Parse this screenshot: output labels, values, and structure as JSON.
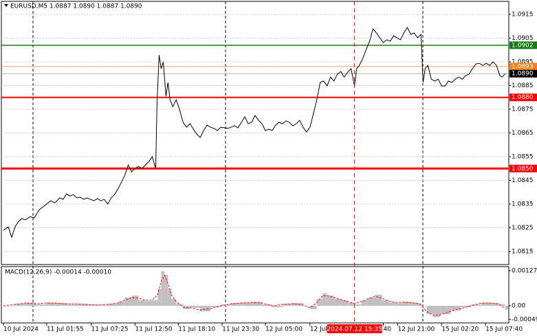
{
  "chart_data": [
    {
      "type": "line",
      "title": "EURUSD,M5 1.0887 1.0890 1.0887 1.0890",
      "color": "#000000",
      "grid": true,
      "xlim": [
        0,
        740
      ],
      "ylim": [
        1.08095,
        1.09205
      ],
      "yticks": [
        1.0815,
        1.0825,
        1.0835,
        1.0845,
        1.0855,
        1.0865,
        1.0875,
        1.0885,
        1.0895,
        1.0905,
        1.0915
      ],
      "x": [
        3,
        10,
        15,
        20,
        25,
        30,
        35,
        42,
        48,
        55,
        62,
        68,
        72,
        78,
        85,
        90,
        95,
        100,
        105,
        110,
        115,
        120,
        125,
        130,
        135,
        140,
        145,
        150,
        155,
        160,
        165,
        170,
        175,
        180,
        185,
        190,
        195,
        200,
        205,
        210,
        215,
        220,
        225,
        227,
        230,
        233,
        236,
        240,
        243,
        246,
        250,
        255,
        260,
        265,
        270,
        275,
        280,
        285,
        290,
        295,
        300,
        305,
        310,
        315,
        320,
        325,
        330,
        335,
        340,
        345,
        350,
        355,
        360,
        365,
        370,
        375,
        380,
        385,
        390,
        395,
        400,
        405,
        410,
        415,
        420,
        425,
        430,
        435,
        440,
        445,
        450,
        455,
        460,
        465,
        470,
        475,
        480,
        485,
        490,
        495,
        500,
        505,
        510,
        515,
        518,
        522,
        527,
        532,
        537,
        542,
        547,
        552,
        557,
        562,
        567,
        572,
        577,
        582,
        587,
        592,
        597,
        602,
        607,
        612,
        615,
        618,
        622,
        627,
        632,
        637,
        642,
        647,
        652,
        657,
        662,
        667,
        672,
        677,
        682,
        687,
        692,
        697,
        702,
        707,
        712,
        717,
        722,
        727,
        730,
        735
      ],
      "values": [
        1.08239,
        1.08254,
        1.0821,
        1.08254,
        1.08277,
        1.08289,
        1.08283,
        1.08297,
        1.08292,
        1.08326,
        1.08341,
        1.08355,
        1.08364,
        1.08355,
        1.08376,
        1.0837,
        1.08393,
        1.08384,
        1.0839,
        1.08376,
        1.08379,
        1.0837,
        1.08376,
        1.0837,
        1.08364,
        1.08373,
        1.08364,
        1.0837,
        1.0835,
        1.08376,
        1.0839,
        1.08413,
        1.08442,
        1.08471,
        1.08515,
        1.08486,
        1.085,
        1.08509,
        1.085,
        1.08515,
        1.08529,
        1.0855,
        1.085,
        1.08776,
        1.08979,
        1.08921,
        1.0895,
        1.08805,
        1.08863,
        1.0879,
        1.08761,
        1.0879,
        1.08747,
        1.08695,
        1.08674,
        1.08689,
        1.08666,
        1.08645,
        1.08631,
        1.0866,
        1.08683,
        1.08674,
        1.08669,
        1.0866,
        1.08674,
        1.08672,
        1.08669,
        1.08674,
        1.0868,
        1.08672,
        1.08695,
        1.08718,
        1.08689,
        1.08695,
        1.08724,
        1.08703,
        1.08689,
        1.0866,
        1.08666,
        1.0866,
        1.08683,
        1.08695,
        1.08689,
        1.08701,
        1.08695,
        1.0868,
        1.08689,
        1.08703,
        1.08674,
        1.08654,
        1.08674,
        1.08732,
        1.0879,
        1.08863,
        1.08869,
        1.08848,
        1.08886,
        1.08869,
        1.08898,
        1.08909,
        1.08886,
        1.08906,
        1.08921,
        1.08848,
        1.08921,
        1.08935,
        1.08964,
        1.09002,
        1.09037,
        1.09089,
        1.09072,
        1.09051,
        1.09031,
        1.09043,
        1.09037,
        1.0906,
        1.09051,
        1.09043,
        1.09072,
        1.09095,
        1.09066,
        1.09072,
        1.09051,
        1.09066,
        1.08863,
        1.08921,
        1.08935,
        1.08877,
        1.08869,
        1.08877,
        1.08848,
        1.08848,
        1.08869,
        1.08863,
        1.08877,
        1.08886,
        1.08877,
        1.08892,
        1.08898,
        1.08921,
        1.08941,
        1.08944,
        1.08935,
        1.08944,
        1.08935,
        1.0895,
        1.08935,
        1.08892,
        1.08886,
        1.089
      ],
      "levels": [
        {
          "value": 1.0902,
          "color": "#1a7a1a",
          "label_bg": "#1a7a1a",
          "width": 1.5
        },
        {
          "value": 1.0893,
          "color": "#f0a060",
          "label_bg": "#f08020",
          "width": 1
        },
        {
          "value": 1.089,
          "label": "1.0890",
          "color": "#b0b0b0",
          "label_bg": "#000000",
          "width": 1
        },
        {
          "value": 1.088,
          "label": "1.0880",
          "color": "#ff0000",
          "label_bg": "#ff0000",
          "width": 2
        },
        {
          "value": 1.085,
          "label": "1.0850",
          "color": "#ff0000",
          "label_bg": "#ff0000",
          "width": 3
        }
      ]
    },
    {
      "type": "bar",
      "title": "MACD(12,26,9) -0.00014 -0.00010",
      "xlim": [
        0,
        740
      ],
      "ylim": [
        -0.00062,
        0.00142
      ],
      "yticks": [
        0.00127,
        {
          "value": 0,
          "label": "0.00"
        },
        -0.00049
      ],
      "x": [
        3,
        20,
        35,
        50,
        65,
        80,
        95,
        110,
        125,
        140,
        155,
        170,
        180,
        190,
        200,
        210,
        220,
        228,
        233,
        238,
        243,
        248,
        255,
        265,
        275,
        290,
        305,
        320,
        335,
        350,
        365,
        380,
        395,
        410,
        425,
        440,
        450,
        460,
        468,
        475,
        485,
        495,
        505,
        515,
        525,
        535,
        545,
        555,
        565,
        575,
        585,
        595,
        605,
        612,
        620,
        630,
        640,
        655,
        670,
        685,
        700,
        715,
        725,
        735
      ],
      "series": [
        {
          "color": "#c0c0c0",
          "values": [
            0,
            7e-05,
            0.00012,
            5e-05,
            0.00012,
            0.0001,
            5e-05,
            7e-05,
            5e-05,
            2e-05,
            7e-05,
            0.00015,
            0.0003,
            0.00037,
            0.0002,
            0.00017,
            0.0002,
            0.00062,
            0.00125,
            0.00112,
            0.00062,
            0.00025,
            7e-05,
            -0.00012,
            -7e-05,
            -0.0002,
            -5e-05,
            5e-05,
            0.0001,
            0.00012,
            0.00015,
            5e-05,
            -5e-05,
            7e-05,
            0.0001,
            0,
            -0.00012,
            0.00025,
            0.00045,
            0.00037,
            0.00025,
            0.0002,
            0.00012,
            5e-05,
            0.0002,
            0.0003,
            0.0004,
            0.0002,
            0.00012,
            0.0001,
            0.00015,
            0.00012,
            0.0001,
            0,
            -0.0003,
            -0.0004,
            -0.0003,
            -0.00017,
            -5e-05,
            5e-05,
            0.00012,
            0.0001,
            5e-05,
            -0.00014
          ]
        },
        {
          "color": "#ff0000",
          "style": "dashed",
          "values": [
            0,
            5e-05,
            0.0001,
            7e-05,
            0.0001,
            0.0001,
            7e-05,
            7e-05,
            5e-05,
            3e-05,
            5e-05,
            0.0001,
            0.0002,
            0.0003,
            0.00027,
            0.0002,
            0.0002,
            0.0004,
            0.0009,
            0.0011,
            0.0008,
            0.0004,
            0.00015,
            -5e-05,
            -7e-05,
            -0.00015,
            -0.0001,
            0,
            7e-05,
            0.0001,
            0.00012,
            0.0001,
            0,
            5e-05,
            8e-05,
            3e-05,
            -8e-05,
            0.00012,
            0.00035,
            0.00037,
            0.0003,
            0.00022,
            0.00015,
            8e-05,
            0.00015,
            0.00025,
            0.00035,
            0.00027,
            0.00017,
            0.00012,
            0.00013,
            0.00012,
            0.0001,
            3e-05,
            -0.0002,
            -0.00035,
            -0.00033,
            -0.0002,
            -0.0001,
            0,
            0.0001,
            0.0001,
            7e-05,
            -0.0001
          ]
        }
      ],
      "xticks": [
        {
          "value": 3,
          "label": "10 Jul 2024"
        },
        {
          "value": 66,
          "label": "11 Jul 01:55"
        },
        {
          "value": 131,
          "label": "11 Jul 07:25"
        },
        {
          "value": 195,
          "label": "11 Jul 12:50"
        },
        {
          "value": 258,
          "label": "11 Jul 18:10"
        },
        {
          "value": 322,
          "label": "11 Jul 23:30"
        },
        {
          "value": 385,
          "label": "12 Jul 05:00"
        },
        {
          "value": 450,
          "label": "12 Jul"
        },
        {
          "value": 557,
          "label": "40"
        },
        {
          "value": 578,
          "label": "12 Jul 21:00"
        },
        {
          "value": 642,
          "label": "15 Jul 02:20"
        },
        {
          "value": 706,
          "label": "15 Jul 07:40"
        }
      ],
      "cursor": {
        "x": 515,
        "label": "2024.07.12 15:35",
        "color": "#ff0000"
      }
    }
  ]
}
